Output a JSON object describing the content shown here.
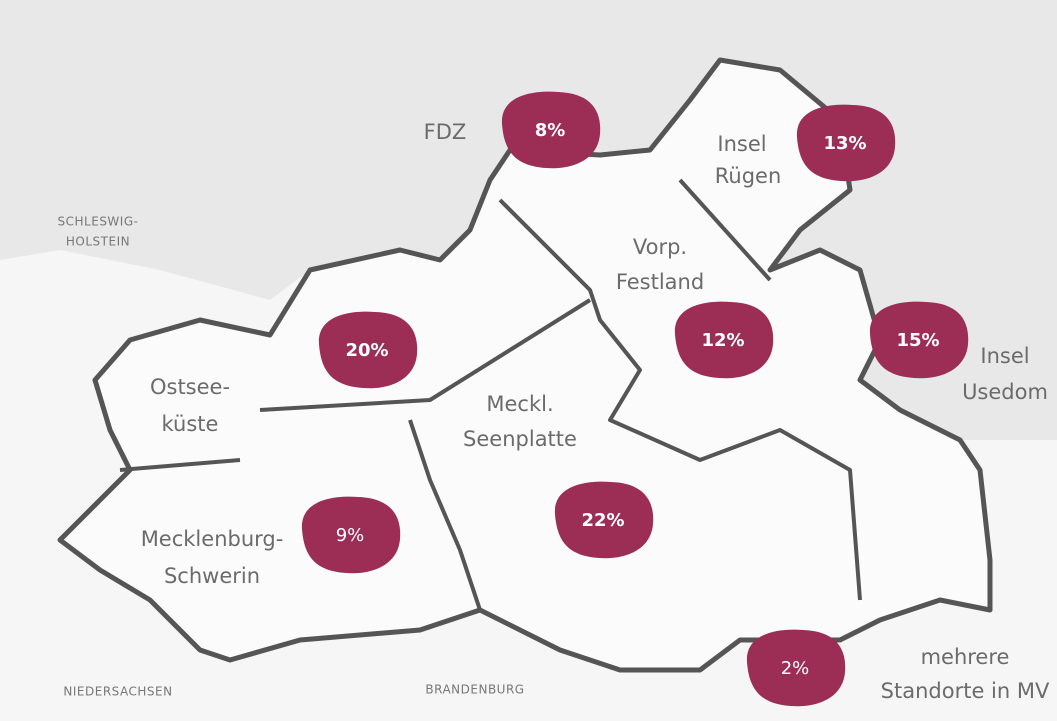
{
  "map": {
    "neighbors": [
      [
        "SCHLESWIG-",
        "HOLSTEIN"
      ],
      [
        "NIEDERSACHSEN"
      ],
      [
        "BRANDENBURG"
      ]
    ],
    "regions": [
      {
        "label": [
          "FDZ"
        ],
        "share": "8%"
      },
      {
        "label": [
          "Insel",
          "Rügen"
        ],
        "share": "13%"
      },
      {
        "label": [
          "Vorp.",
          "Festland"
        ],
        "share": "12%"
      },
      {
        "label": [
          "Insel",
          "Usedom"
        ],
        "share": "15%"
      },
      {
        "label": [
          "Ostsee-",
          "küste"
        ],
        "share": "20%"
      },
      {
        "label": [
          "Meckl.",
          "Seenplatte"
        ],
        "share": "22%"
      },
      {
        "label": [
          "Mecklenburg-",
          "Schwerin"
        ],
        "share": "9%"
      },
      {
        "label": [
          "mehrere",
          "Standorte in MV"
        ],
        "share": "2%"
      }
    ]
  }
}
